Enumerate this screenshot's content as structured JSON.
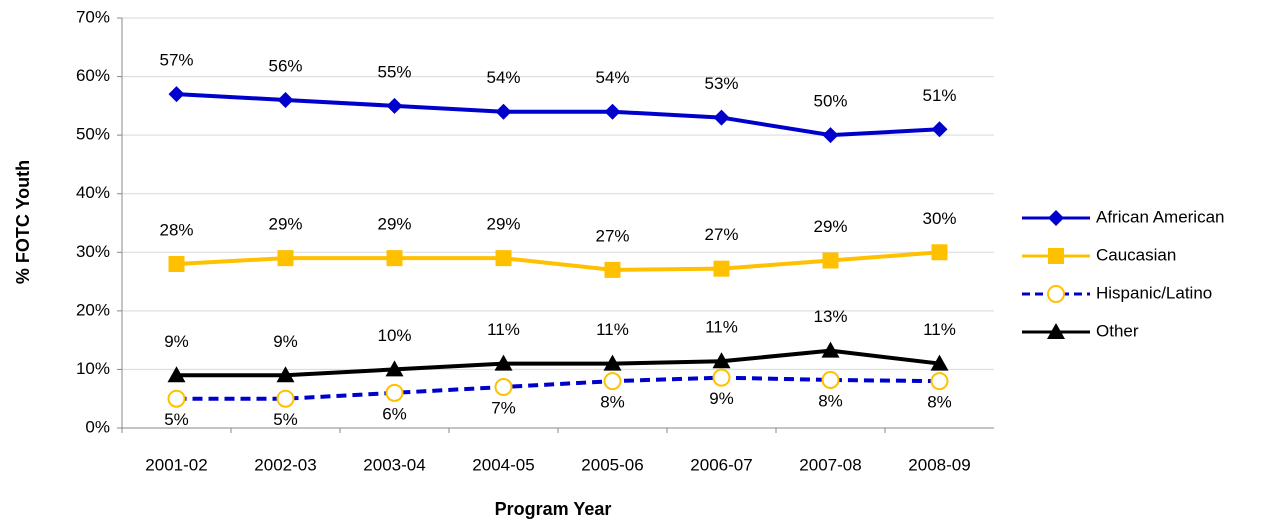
{
  "chart_data": {
    "type": "line",
    "y_label": "% FOTC Youth",
    "x_label": "Program Year",
    "categories": [
      "2001-02",
      "2002-03",
      "2003-04",
      "2004-05",
      "2005-06",
      "2006-07",
      "2007-08",
      "2008-09"
    ],
    "series": [
      {
        "name": "African American",
        "color": "#0000cc",
        "marker": "diamond",
        "dash": false,
        "values": [
          57,
          56,
          55,
          54,
          54,
          53,
          50,
          51
        ],
        "value_labels": [
          "57%",
          "56%",
          "55%",
          "54%",
          "54%",
          "53%",
          "50%",
          "51%"
        ]
      },
      {
        "name": "Caucasian",
        "color": "#ffc000",
        "marker": "square",
        "dash": false,
        "values": [
          28,
          29,
          29,
          29,
          27,
          27.2,
          28.6,
          30
        ],
        "value_labels": [
          "28%",
          "29%",
          "29%",
          "29%",
          "27%",
          "27%",
          "29%",
          "30%"
        ]
      },
      {
        "name": "Hispanic/Latino",
        "color": "#0000cc",
        "marker_color": "#ffc000",
        "marker": "open-circle",
        "dash": true,
        "values": [
          5,
          5,
          6,
          7,
          8,
          8.6,
          8.2,
          8
        ],
        "value_labels": [
          "5%",
          "5%",
          "6%",
          "7%",
          "8%",
          "9%",
          "8%",
          "8%"
        ]
      },
      {
        "name": "Other",
        "color": "#000000",
        "marker": "triangle",
        "dash": false,
        "values": [
          9,
          9,
          10,
          11,
          11,
          11.4,
          13.2,
          11
        ],
        "value_labels": [
          "9%",
          "9%",
          "10%",
          "11%",
          "11%",
          "11%",
          "13%",
          "11%"
        ]
      }
    ],
    "ylim": [
      0,
      70
    ],
    "yticks": [
      {
        "value": 0,
        "label": "0%"
      },
      {
        "value": 10,
        "label": "10%"
      },
      {
        "value": 20,
        "label": "20%"
      },
      {
        "value": 30,
        "label": "30%"
      },
      {
        "value": 40,
        "label": "40%"
      },
      {
        "value": 50,
        "label": "50%"
      },
      {
        "value": 60,
        "label": "60%"
      },
      {
        "value": 70,
        "label": "70%"
      }
    ],
    "grid": true,
    "legend": "right"
  }
}
